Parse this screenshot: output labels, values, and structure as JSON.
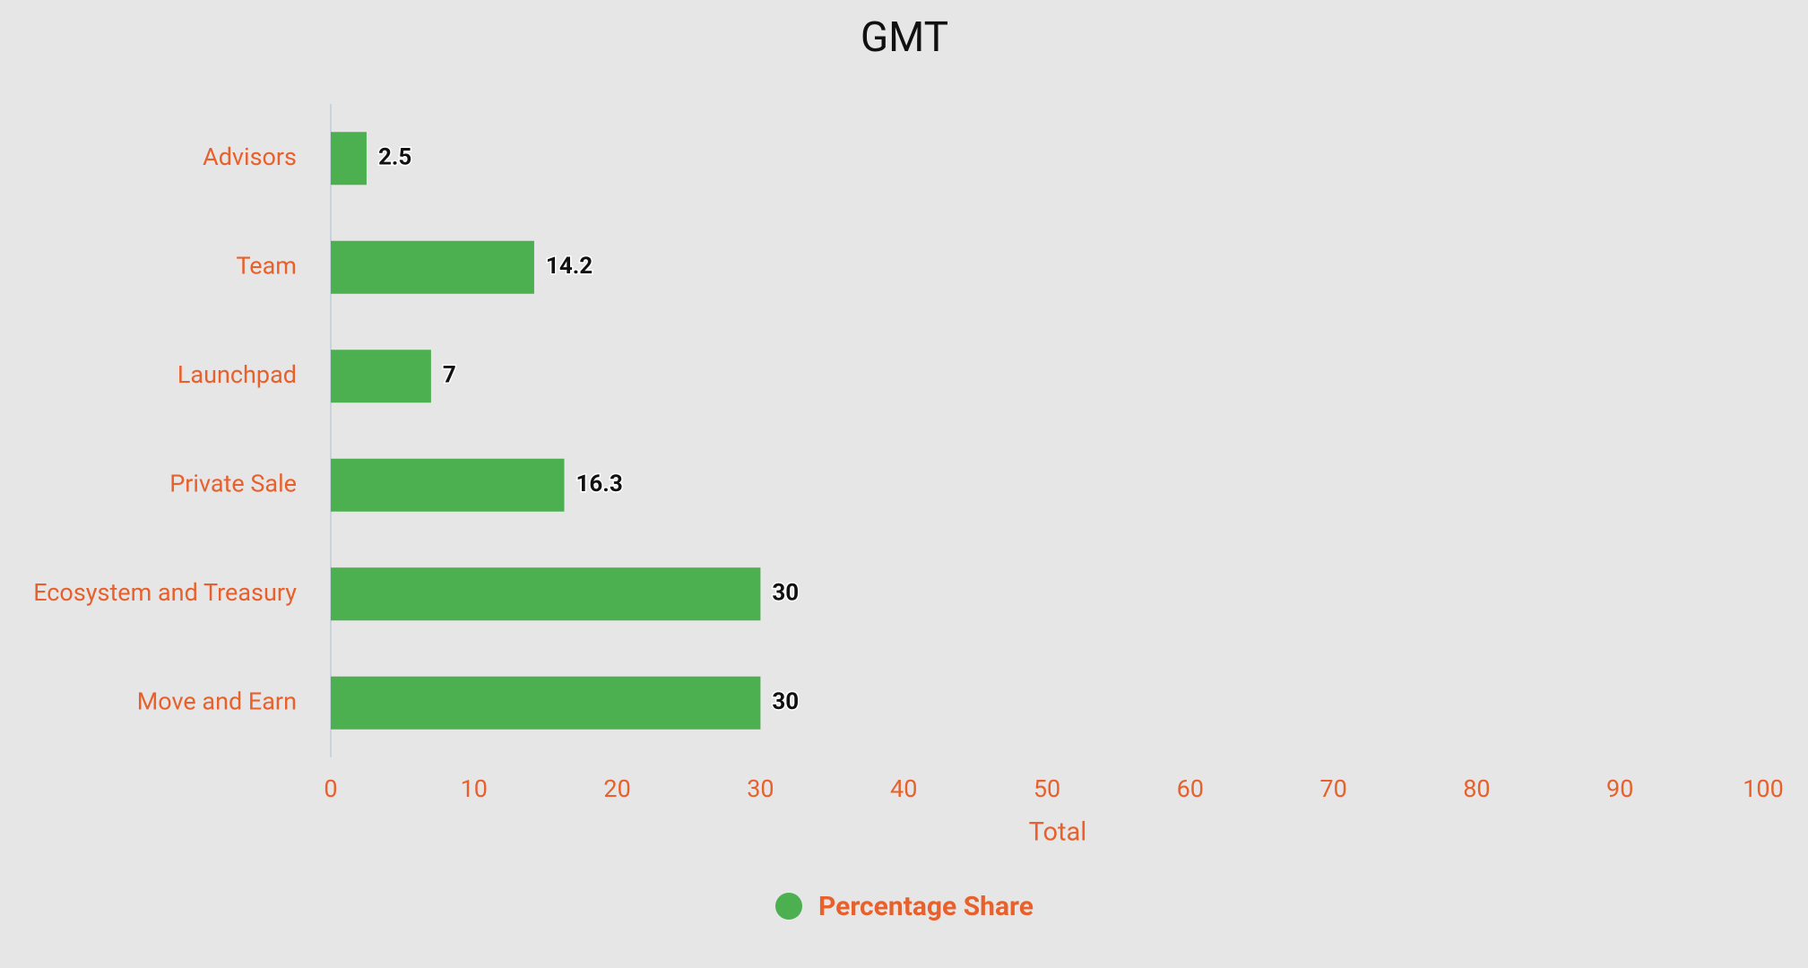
{
  "chart_data": {
    "type": "bar",
    "orientation": "horizontal",
    "title": "GMT",
    "categories": [
      "Advisors",
      "Team",
      "Launchpad",
      "Private Sale",
      "Ecosystem and Treasury",
      "Move and Earn"
    ],
    "series": [
      {
        "name": "Percentage Share",
        "color": "#4caf50",
        "values": [
          2.5,
          14.2,
          7,
          16.3,
          30,
          30
        ]
      }
    ],
    "x_label": "Total",
    "xlim": [
      0,
      100
    ],
    "xticks": [
      0,
      10,
      20,
      30,
      40,
      50,
      60,
      70,
      80,
      90,
      100
    ],
    "grid": false,
    "legend": "bottom",
    "label_color": "#e8602c"
  }
}
